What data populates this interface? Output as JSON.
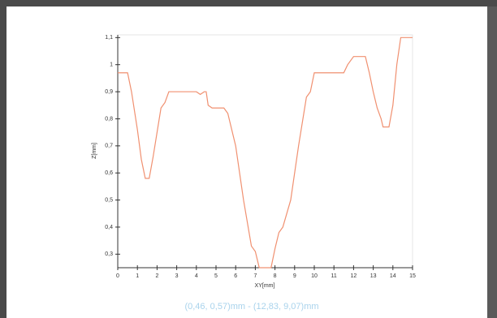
{
  "chart_data": {
    "type": "line",
    "subtitle": "(0,46, 0,57)mm - (12,83, 9,07)mm",
    "x_label": "XY[mm]",
    "y_label": "Z[mm]",
    "x": [
      0,
      0.5,
      0.7,
      1.0,
      1.2,
      1.4,
      1.6,
      1.8,
      2.2,
      2.4,
      2.6,
      3.0,
      4.0,
      4.2,
      4.4,
      4.5,
      4.6,
      4.8,
      5.4,
      5.6,
      6.0,
      6.4,
      6.8,
      7.0,
      7.2,
      7.8,
      8.0,
      8.2,
      8.4,
      8.8,
      9.2,
      9.6,
      9.8,
      10.0,
      11.5,
      11.7,
      12.0,
      12.6,
      12.8,
      13.0,
      13.2,
      13.4,
      13.5,
      13.8,
      14.0,
      14.2,
      14.4,
      14.6,
      15
    ],
    "series": [
      {
        "color": "#f09070",
        "values": [
          0.97,
          0.97,
          0.9,
          0.76,
          0.65,
          0.58,
          0.58,
          0.66,
          0.84,
          0.86,
          0.9,
          0.9,
          0.9,
          0.89,
          0.9,
          0.9,
          0.85,
          0.84,
          0.84,
          0.82,
          0.7,
          0.5,
          0.33,
          0.31,
          0.25,
          0.25,
          0.32,
          0.38,
          0.4,
          0.5,
          0.7,
          0.88,
          0.9,
          0.97,
          0.97,
          1.0,
          1.03,
          1.03,
          0.97,
          0.9,
          0.84,
          0.8,
          0.77,
          0.77,
          0.85,
          1.0,
          1.1,
          1.1,
          1.1
        ]
      }
    ],
    "xlim": [
      0,
      15
    ],
    "xticks": [
      0,
      1,
      2,
      3,
      4,
      5,
      6,
      7,
      8,
      9,
      10,
      11,
      12,
      13,
      14,
      15
    ],
    "ylim": [
      0.25,
      1.11
    ],
    "yticks": [
      {
        "value": 0.3,
        "label": "0,3"
      },
      {
        "value": 0.4,
        "label": "0,4"
      },
      {
        "value": 0.5,
        "label": "0,5"
      },
      {
        "value": 0.6,
        "label": "0,6"
      },
      {
        "value": 0.7,
        "label": "0,7"
      },
      {
        "value": 0.8,
        "label": "0,8"
      },
      {
        "value": 0.9,
        "label": "0,9"
      },
      1,
      {
        "value": 1.1,
        "label": "1,1"
      }
    ]
  }
}
